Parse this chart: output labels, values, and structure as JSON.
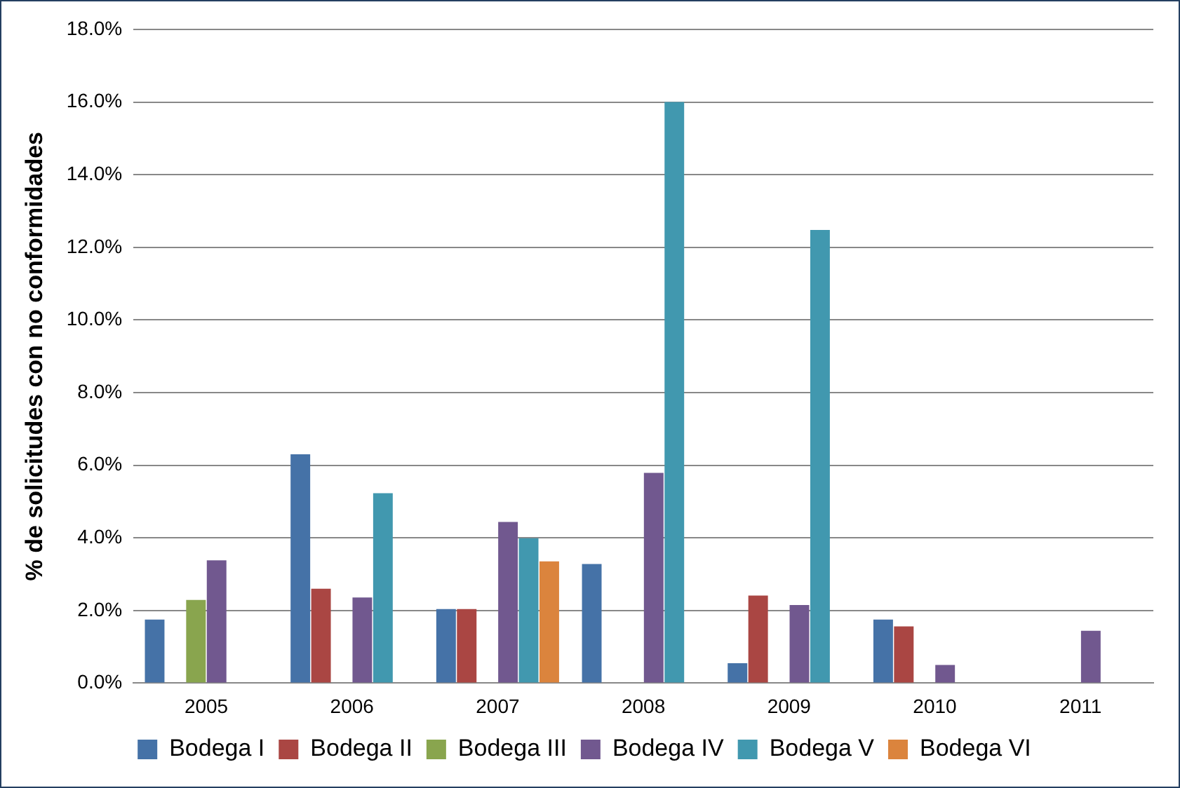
{
  "chart_data": {
    "type": "bar",
    "ylabel": "% de solicitudes con no conformidades",
    "categories": [
      "2005",
      "2006",
      "2007",
      "2008",
      "2009",
      "2010",
      "2011"
    ],
    "series": [
      {
        "name": "Bodega I",
        "color": "#4572a7",
        "values": [
          1.75,
          6.3,
          2.04,
          3.28,
          0.55,
          1.75,
          null
        ]
      },
      {
        "name": "Bodega II",
        "color": "#aa4643",
        "values": [
          null,
          2.6,
          2.04,
          null,
          2.41,
          1.56,
          null
        ]
      },
      {
        "name": "Bodega III",
        "color": "#89a54e",
        "values": [
          2.29,
          null,
          null,
          null,
          null,
          null,
          null
        ]
      },
      {
        "name": "Bodega IV",
        "color": "#71588f",
        "values": [
          3.38,
          2.36,
          4.44,
          5.79,
          2.15,
          0.5,
          1.44
        ]
      },
      {
        "name": "Bodega V",
        "color": "#4198af",
        "values": [
          null,
          5.23,
          3.99,
          16.0,
          12.48,
          null,
          null
        ]
      },
      {
        "name": "Bodega VI",
        "color": "#db843d",
        "values": [
          null,
          null,
          3.35,
          null,
          null,
          null,
          null
        ]
      }
    ],
    "ylim": [
      0,
      18
    ],
    "yticks": [
      {
        "value": 0,
        "label": "0.0%"
      },
      {
        "value": 2,
        "label": "2.0%"
      },
      {
        "value": 4,
        "label": "4.0%"
      },
      {
        "value": 6,
        "label": "6.0%"
      },
      {
        "value": 8,
        "label": "8.0%"
      },
      {
        "value": 10,
        "label": "10.0%"
      },
      {
        "value": 12,
        "label": "12.0%"
      },
      {
        "value": 14,
        "label": "14.0%"
      },
      {
        "value": 16,
        "label": "16.0%"
      },
      {
        "value": 18,
        "label": "18.0%"
      }
    ],
    "grid": "y",
    "legend": "bottom"
  }
}
